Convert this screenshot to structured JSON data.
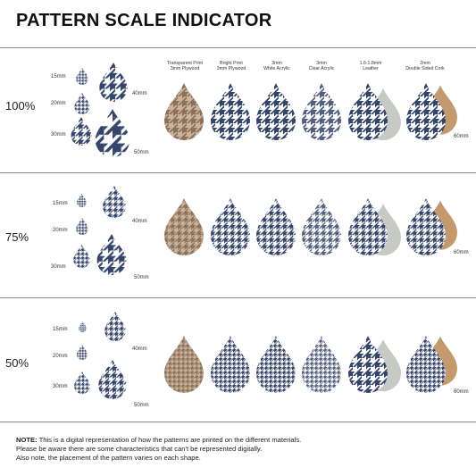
{
  "title": "PATTERN SCALE INDICATOR",
  "colors": {
    "navy": "#34456b",
    "cream": "#ffffff",
    "wood": "#b59a7e",
    "wood_dark": "#8d7058",
    "felt": "#c7c9c5",
    "cork": "#c49a6c",
    "divider": "#8a8a8a"
  },
  "materials": [
    {
      "line1": "Transparent Print",
      "line2": "3mm Plywood"
    },
    {
      "line1": "Bright Print",
      "line2": "3mm Plywood"
    },
    {
      "line1": "3mm",
      "line2": "White Acrylic"
    },
    {
      "line1": "3mm",
      "line2": "Clear Acrylic"
    },
    {
      "line1": "1.6-1.8mm",
      "line2": "Leather"
    },
    {
      "line1": "2mm",
      "line2": "Double Sided Cork"
    }
  ],
  "sections": [
    {
      "scale": "100%",
      "sizes": [
        "15mm",
        "20mm",
        "30mm",
        "40mm",
        "50mm"
      ],
      "size_60": "60mm"
    },
    {
      "scale": "75%",
      "sizes": [
        "15mm",
        "20mm",
        "30mm",
        "40mm",
        "50mm"
      ],
      "size_60": "60mm"
    },
    {
      "scale": "50%",
      "sizes": [
        "15mm",
        "20mm",
        "30mm",
        "40mm",
        "50mm"
      ],
      "size_60": "60mm"
    }
  ],
  "note": {
    "bold": "NOTE:",
    "line1": " This is a digital representation of how the patterns are printed on the different materials.",
    "line2": "Please be aware there are some characteristics that can't be represented digitally.",
    "line3": "Also note, the placement of the pattern varies on each shape."
  }
}
